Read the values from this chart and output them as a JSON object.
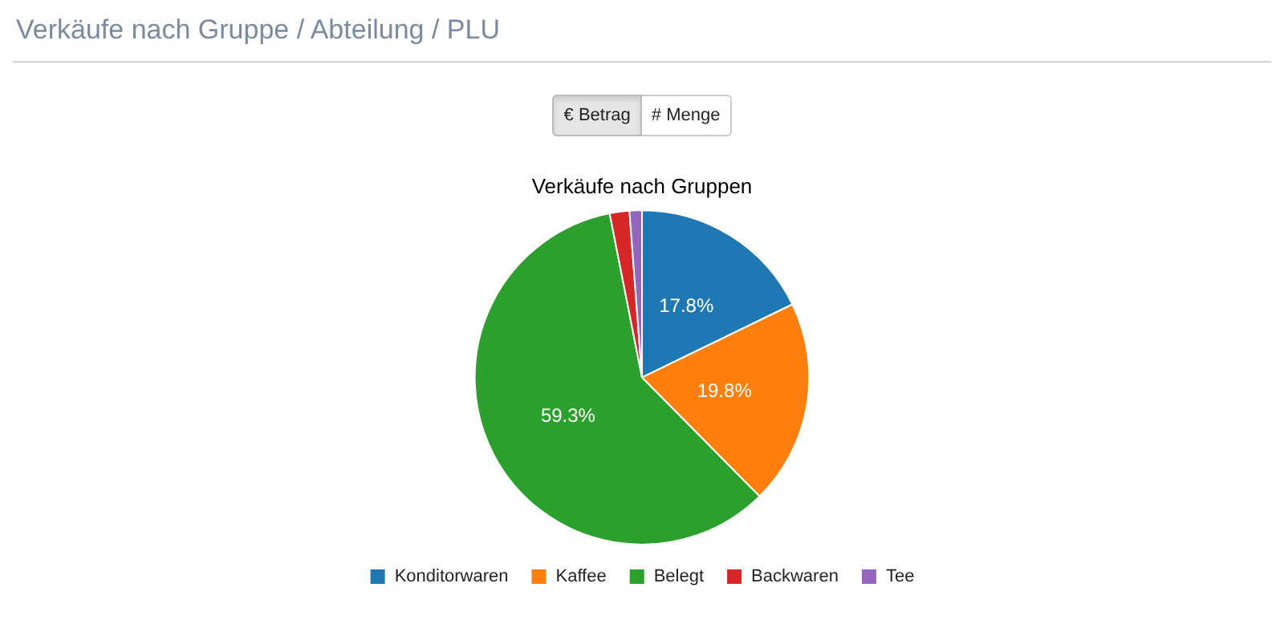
{
  "chart_data": {
    "type": "pie",
    "title": "Verkäufe nach Gruppen",
    "annotations": [
      "Verkäufe nach Gruppe / Abteilung / PLU",
      "€ Betrag",
      "# Menge"
    ],
    "categories": [
      "Konditorwaren",
      "Kaffee",
      "Belegt",
      "Backwaren",
      "Tee"
    ],
    "values": [
      17.8,
      19.8,
      59.3,
      1.9,
      1.2
    ],
    "colors": [
      "#1f77b4",
      "#ff7f0e",
      "#2ca02c",
      "#d62728",
      "#9467bd"
    ],
    "value_labels": [
      "17.8%",
      "19.8%",
      "59.3%",
      null,
      null
    ],
    "legend": "bottom"
  }
}
